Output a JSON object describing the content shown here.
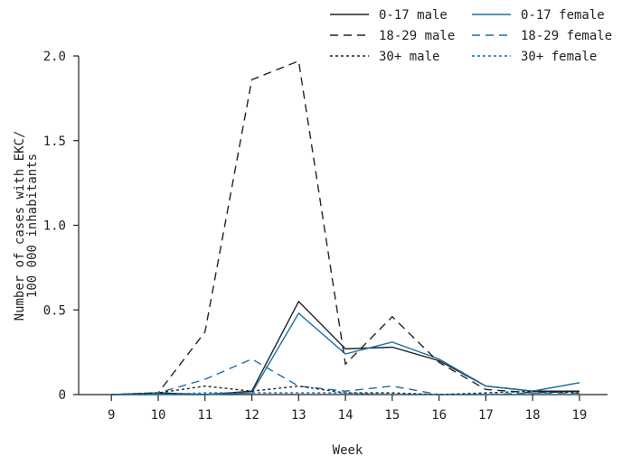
{
  "chart_data": {
    "type": "line",
    "xlabel": "Week",
    "ylabel": "Number of cases with EKC/\n100 000 inhabitants",
    "x": [
      9,
      10,
      11,
      12,
      13,
      14,
      15,
      16,
      17,
      18,
      19
    ],
    "xlim": [
      8.3,
      19.6
    ],
    "ylim": [
      0,
      2.0
    ],
    "y_ticks": [
      {
        "value": 0,
        "label": "0"
      },
      {
        "value": 0.5,
        "label": "0.5"
      },
      {
        "value": 1.0,
        "label": "1.0"
      },
      {
        "value": 1.5,
        "label": "1.5"
      },
      {
        "value": 2.0,
        "label": "2.0"
      }
    ],
    "grid": false,
    "legend_position": "top-right",
    "series": [
      {
        "name": "0-17 male",
        "color": "#222222",
        "dash": "solid",
        "values": [
          0,
          0.01,
          0,
          0.02,
          0.55,
          0.27,
          0.28,
          0.2,
          0.05,
          0.02,
          0.02
        ]
      },
      {
        "name": "0-17 female",
        "color": "#1a6fa6",
        "dash": "solid",
        "values": [
          0,
          0,
          0,
          0.01,
          0.48,
          0.24,
          0.31,
          0.21,
          0.05,
          0.02,
          0.07
        ]
      },
      {
        "name": "18-29 male",
        "color": "#222222",
        "dash": "dashed",
        "values": [
          0,
          0.01,
          0.37,
          1.86,
          1.97,
          0.18,
          0.46,
          0.19,
          0.03,
          0.01,
          0.02
        ]
      },
      {
        "name": "18-29 female",
        "color": "#1a6fa6",
        "dash": "dashed",
        "values": [
          0,
          0.01,
          0.09,
          0.21,
          0.05,
          0.02,
          0.05,
          0.0,
          0.0,
          0.01,
          0.01
        ]
      },
      {
        "name": "30+ male",
        "color": "#222222",
        "dash": "dotted",
        "values": [
          0,
          0.01,
          0.05,
          0.02,
          0.05,
          0.01,
          0.01,
          0.0,
          0.01,
          0.02,
          0.01
        ]
      },
      {
        "name": "30+ female",
        "color": "#1a6fa6",
        "dash": "dotted",
        "values": [
          0,
          0.0,
          0.01,
          0.01,
          0.01,
          0.01,
          0.0,
          0.0,
          0.0,
          0.0,
          0.0
        ]
      }
    ]
  }
}
